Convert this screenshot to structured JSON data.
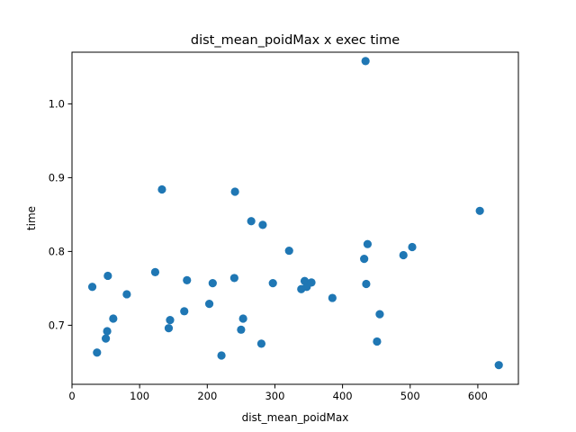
{
  "chart_data": {
    "type": "scatter",
    "title": "dist_mean_poidMax x exec time",
    "xlabel": "dist_mean_poidMax",
    "ylabel": "time",
    "xlim": [
      0,
      660
    ],
    "ylim": [
      0.62,
      1.07
    ],
    "xticks": [
      0,
      100,
      200,
      300,
      400,
      500,
      600
    ],
    "yticks": [
      0.7,
      0.8,
      0.9,
      1.0
    ],
    "ytick_labels": [
      "0.7",
      "0.8",
      "0.9",
      "1.0"
    ],
    "grid": false,
    "marker_color": "#1f77b4",
    "series": [
      {
        "x": [
          30,
          37,
          50,
          52,
          53,
          61,
          81,
          123,
          133,
          143,
          145,
          166,
          170,
          203,
          208,
          221,
          240,
          241,
          250,
          253,
          265,
          280,
          282,
          297,
          321,
          339,
          344,
          347,
          354,
          385,
          432,
          434,
          435,
          437,
          451,
          455,
          490,
          503,
          603,
          631
        ],
        "y": [
          0.752,
          0.663,
          0.682,
          0.692,
          0.767,
          0.709,
          0.742,
          0.772,
          0.884,
          0.696,
          0.707,
          0.719,
          0.761,
          0.729,
          0.757,
          0.659,
          0.764,
          0.881,
          0.694,
          0.709,
          0.841,
          0.675,
          0.836,
          0.757,
          0.801,
          0.749,
          0.76,
          0.752,
          0.758,
          0.737,
          0.79,
          1.058,
          0.756,
          0.81,
          0.678,
          0.715,
          0.795,
          0.806,
          0.855,
          0.646
        ]
      }
    ]
  }
}
